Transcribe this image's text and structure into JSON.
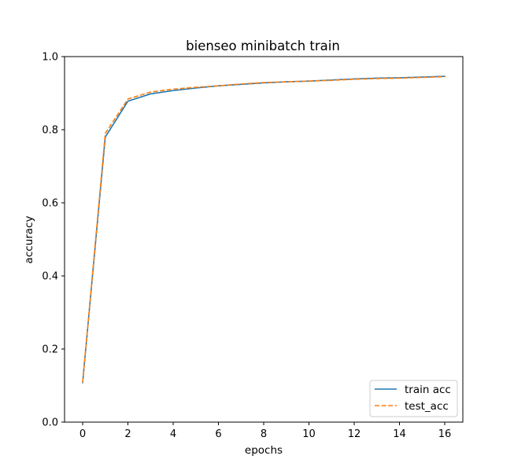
{
  "chart_data": {
    "type": "line",
    "title": "bienseo minibatch train",
    "xlabel": "epochs",
    "ylabel": "accuracy",
    "xlim": [
      -0.8,
      16.8
    ],
    "ylim": [
      0.0,
      1.0
    ],
    "xticks": [
      0,
      2,
      4,
      6,
      8,
      10,
      12,
      14,
      16
    ],
    "xtick_labels": [
      "0",
      "2",
      "4",
      "6",
      "8",
      "10",
      "12",
      "14",
      "16"
    ],
    "yticks": [
      0.0,
      0.2,
      0.4,
      0.6,
      0.8,
      1.0
    ],
    "ytick_labels": [
      "0.0",
      "0.2",
      "0.4",
      "0.6",
      "0.8",
      "1.0"
    ],
    "grid": false,
    "legend_position": "lower-right",
    "x": [
      0,
      1,
      2,
      3,
      4,
      5,
      6,
      7,
      8,
      9,
      10,
      11,
      12,
      13,
      14,
      15,
      16
    ],
    "series": [
      {
        "name": "train acc",
        "color": "#1f77b4",
        "style": "solid",
        "values": [
          0.108,
          0.78,
          0.878,
          0.898,
          0.907,
          0.914,
          0.92,
          0.924,
          0.928,
          0.931,
          0.933,
          0.936,
          0.939,
          0.941,
          0.942,
          0.944,
          0.946
        ]
      },
      {
        "name": "test_acc",
        "color": "#ff7f0e",
        "style": "dashed",
        "values": [
          0.108,
          0.79,
          0.884,
          0.903,
          0.911,
          0.916,
          0.92,
          0.925,
          0.929,
          0.931,
          0.933,
          0.935,
          0.938,
          0.94,
          0.941,
          0.943,
          0.945
        ]
      }
    ]
  }
}
